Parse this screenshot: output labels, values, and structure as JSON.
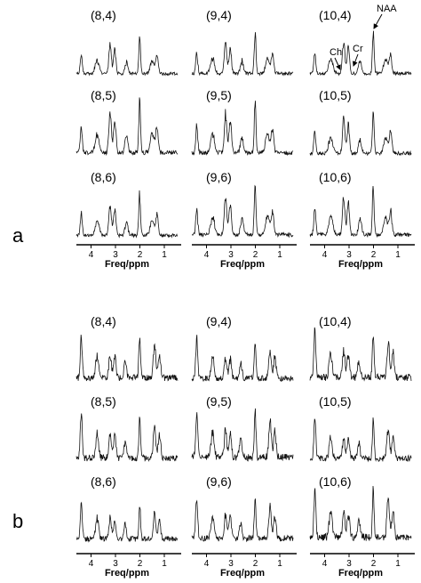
{
  "panels": [
    {
      "label": "a",
      "rows": [
        [
          "(8,4)",
          "(9,4)",
          "(10,4)"
        ],
        [
          "(8,5)",
          "(9,5)",
          "(10,5)"
        ],
        [
          "(8,6)",
          "(9,6)",
          "(10,6)"
        ]
      ],
      "axes": [
        {
          "ticks": [
            4,
            3,
            2,
            1
          ],
          "title": "Freq/ppm"
        },
        {
          "ticks": [
            4,
            3,
            2,
            1
          ],
          "title": "Freq/ppm"
        },
        {
          "ticks": [
            4,
            3,
            2,
            1
          ],
          "title": "Freq/ppm"
        }
      ],
      "annotations": [
        "Ch",
        "Cr",
        "NAA"
      ]
    },
    {
      "label": "b",
      "rows": [
        [
          "(8,4)",
          "(9,4)",
          "(10,4)"
        ],
        [
          "(8,5)",
          "(9,5)",
          "(10,5)"
        ],
        [
          "(8,6)",
          "(9,6)",
          "(10,6)"
        ]
      ],
      "axes": [
        {
          "ticks": [
            4,
            3,
            2,
            1
          ],
          "title": "Freq/ppm"
        },
        {
          "ticks": [
            4,
            3,
            2,
            1
          ],
          "title": "Freq/ppm"
        },
        {
          "ticks": [
            4,
            3,
            2,
            1
          ],
          "title": "Freq/ppm"
        }
      ]
    }
  ]
}
